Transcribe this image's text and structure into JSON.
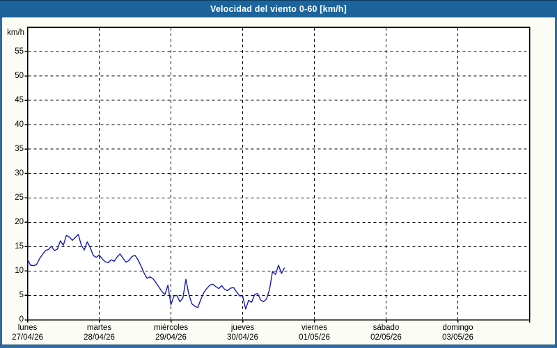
{
  "title_bar": {
    "title": "Velocidad del viento 0-60 [km/h]"
  },
  "colors": {
    "title_bar_bg": "#1c649b",
    "title_text": "#ffffff",
    "frame": "#2c6ba3",
    "content_bg": "#fbfdf4",
    "plot_bg": "#ffffff",
    "grid": "#000000",
    "axis_text": "#000000",
    "line": "#1919b2"
  },
  "chart_data": {
    "type": "line",
    "title": "Velocidad del viento 0-60 [km/h]",
    "ylabel": "km/h",
    "ylim": [
      0,
      60
    ],
    "ytick_step": 5,
    "ytick_labels": [
      "0",
      "5",
      "10",
      "15",
      "20",
      "25",
      "30",
      "35",
      "40",
      "45",
      "50",
      "55"
    ],
    "grid": "dashed-black-horizontal-and-vertical",
    "legend": "none",
    "days": [
      {
        "name": "lunes",
        "date": "27/04/26"
      },
      {
        "name": "martes",
        "date": "28/04/26"
      },
      {
        "name": "miércoles",
        "date": "29/04/26"
      },
      {
        "name": "jueves",
        "date": "30/04/26"
      },
      {
        "name": "viernes",
        "date": "01/05/26"
      },
      {
        "name": "sábado",
        "date": "02/05/26"
      },
      {
        "name": "domingo",
        "date": "03/05/26"
      }
    ],
    "x_unit": "hours since lunes 27/04/26 00:00",
    "series": [
      {
        "name": "Velocidad del viento",
        "unit": "km/h",
        "interval_hours": 1,
        "values": [
          12.4,
          11.2,
          11.1,
          11.3,
          12.5,
          13.4,
          14.2,
          14.4,
          15.1,
          14.2,
          14.5,
          16.2,
          15.3,
          17.3,
          17.0,
          16.3,
          16.9,
          17.5,
          15.3,
          14.3,
          16.0,
          14.8,
          13.2,
          12.8,
          13.3,
          12.5,
          11.9,
          11.7,
          12.3,
          12.0,
          12.9,
          13.5,
          12.6,
          11.8,
          12.2,
          13.0,
          13.2,
          12.3,
          11.0,
          9.6,
          8.5,
          8.8,
          8.4,
          7.6,
          6.7,
          5.8,
          5.2,
          7.1,
          3.1,
          4.9,
          5.0,
          3.7,
          4.5,
          8.3,
          5.2,
          3.3,
          2.8,
          2.5,
          4.2,
          5.6,
          6.4,
          7.1,
          7.3,
          6.8,
          6.4,
          7.0,
          6.2,
          6.0,
          6.5,
          6.6,
          5.7,
          4.9,
          4.9,
          2.2,
          4.0,
          3.6,
          5.2,
          5.4,
          4.1,
          3.7,
          4.3,
          6.2,
          9.9,
          9.3,
          11.2,
          9.5,
          10.7
        ]
      }
    ]
  }
}
